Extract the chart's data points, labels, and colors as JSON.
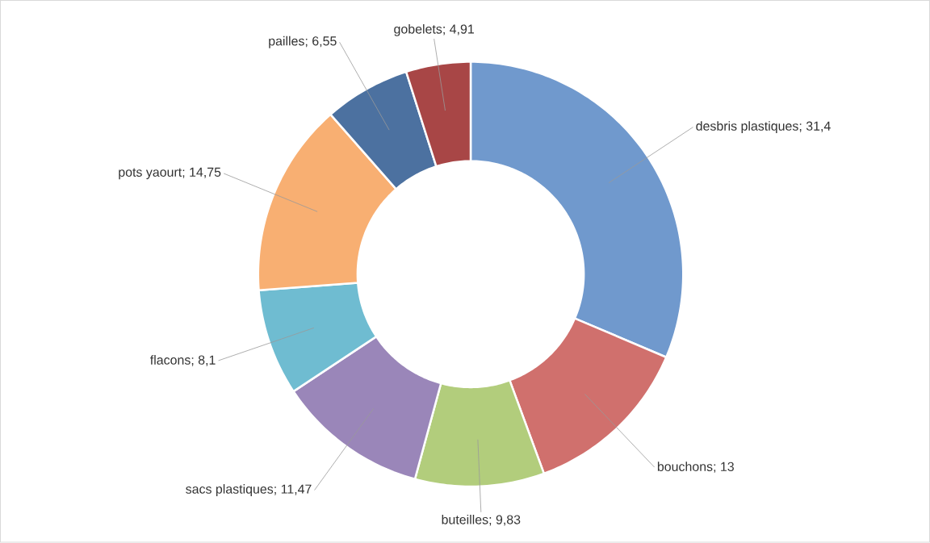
{
  "chart_data": {
    "type": "donut",
    "categories": [
      "desbris plastiques",
      "bouchons",
      "buteilles",
      "sacs plastiques",
      "flacons",
      "pots yaourt",
      "pailles",
      "gobelets"
    ],
    "values": [
      31.4,
      13,
      9.83,
      11.47,
      8.1,
      14.75,
      6.55,
      4.91
    ],
    "value_labels": [
      "; 31,4",
      "; 13",
      "; 9,83",
      "; 11,47",
      "; 8,1",
      "; 14,75",
      "; 6,55",
      "; 4,91"
    ],
    "colors": [
      "#7099cd",
      "#d0706d",
      "#b2cd7c",
      "#9a86b9",
      "#6fbcd1",
      "#f8af72",
      "#4c71a0",
      "#a84646"
    ]
  }
}
